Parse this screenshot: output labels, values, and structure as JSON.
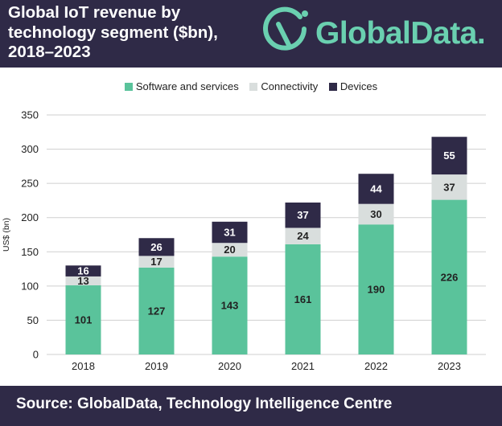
{
  "header": {
    "title_lines": [
      "Global IoT revenue by",
      "technology segment ($bn),",
      "2018–2023"
    ],
    "logo_text": "GlobalData",
    "logo_suffix": "."
  },
  "footer": {
    "source": "Source: GlobalData, Technology Intelligence Centre"
  },
  "colors": {
    "header_bg": "#2f2a47",
    "software": "#5ac39b",
    "connectivity": "#d9dedd",
    "devices": "#2f2a47",
    "logo": "#6ad0b0"
  },
  "chart_data": {
    "type": "bar",
    "stacked": true,
    "title": "Global IoT revenue by technology segment ($bn), 2018–2023",
    "ylabel": "US$ (bn)",
    "xlabel": "",
    "ylim": [
      0,
      350
    ],
    "yticks": [
      0,
      50,
      100,
      150,
      200,
      250,
      300,
      350
    ],
    "grid": true,
    "legend_position": "top-center",
    "categories": [
      "2018",
      "2019",
      "2020",
      "2021",
      "2022",
      "2023"
    ],
    "series": [
      {
        "name": "Software and services",
        "color": "#5ac39b",
        "label_color": "#222222",
        "values": [
          101,
          127,
          143,
          161,
          190,
          226
        ]
      },
      {
        "name": "Connectivity",
        "color": "#d9dedd",
        "label_color": "#222222",
        "values": [
          13,
          17,
          20,
          24,
          30,
          37
        ]
      },
      {
        "name": "Devices",
        "color": "#2f2a47",
        "label_color": "#ffffff",
        "values": [
          16,
          26,
          31,
          37,
          44,
          55
        ]
      }
    ]
  }
}
